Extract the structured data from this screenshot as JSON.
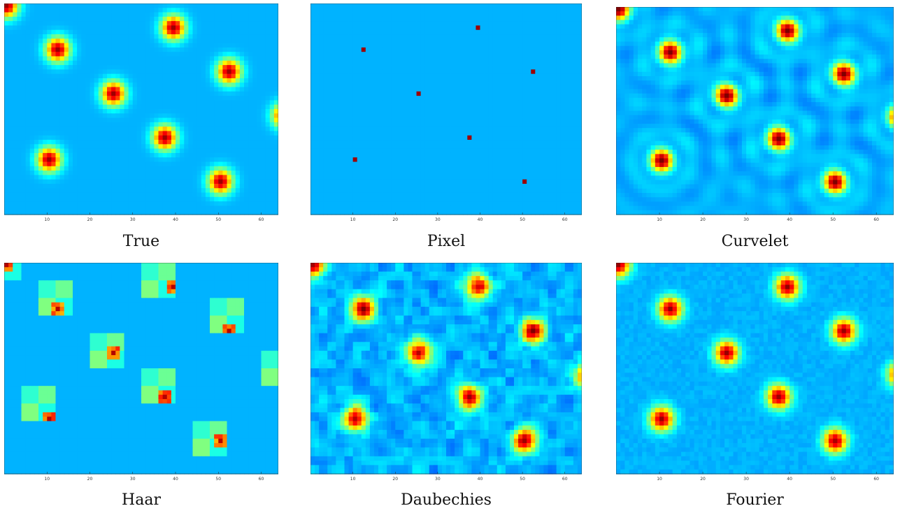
{
  "chart_data": [
    {
      "type": "heatmap",
      "title": "True",
      "style": "gaussian",
      "colormap": "jet",
      "peaks": [
        [
          39,
          5
        ],
        [
          12,
          10
        ],
        [
          52,
          15
        ],
        [
          25,
          20
        ],
        [
          65,
          25
        ],
        [
          37,
          30
        ],
        [
          10,
          35
        ],
        [
          50,
          40
        ],
        [
          0,
          0
        ]
      ],
      "xticks": [
        "10",
        "20",
        "30",
        "40",
        "50",
        "60"
      ]
    },
    {
      "type": "heatmap",
      "title": "Pixel",
      "style": "spike",
      "colormap": "jet",
      "peaks": [
        [
          39,
          5
        ],
        [
          12,
          10
        ],
        [
          52,
          15
        ],
        [
          25,
          20
        ],
        [
          65,
          25
        ],
        [
          37,
          30
        ],
        [
          10,
          35
        ],
        [
          50,
          40
        ]
      ],
      "xticks": [
        "10",
        "20",
        "30",
        "40",
        "50",
        "60"
      ]
    },
    {
      "type": "heatmap",
      "title": "Curvelet",
      "style": "ringing",
      "colormap": "jet",
      "peaks": [
        [
          39,
          5
        ],
        [
          12,
          10
        ],
        [
          52,
          15
        ],
        [
          25,
          20
        ],
        [
          65,
          25
        ],
        [
          37,
          30
        ],
        [
          10,
          35
        ],
        [
          50,
          40
        ],
        [
          0,
          0
        ]
      ],
      "xticks": [
        "10",
        "20",
        "30",
        "40",
        "50",
        "60"
      ]
    },
    {
      "type": "heatmap",
      "title": "Haar",
      "style": "blocks",
      "colormap": "jet",
      "peaks": [
        [
          39,
          5
        ],
        [
          12,
          10
        ],
        [
          52,
          15
        ],
        [
          25,
          20
        ],
        [
          65,
          25
        ],
        [
          37,
          30
        ],
        [
          10,
          35
        ],
        [
          50,
          40
        ],
        [
          0,
          0
        ]
      ],
      "xticks": [
        "10",
        "20",
        "30",
        "40",
        "50",
        "60"
      ]
    },
    {
      "type": "heatmap",
      "title": "Daubechies",
      "style": "noisy",
      "colormap": "jet",
      "peaks": [
        [
          39,
          5
        ],
        [
          12,
          10
        ],
        [
          52,
          15
        ],
        [
          25,
          20
        ],
        [
          65,
          25
        ],
        [
          37,
          30
        ],
        [
          10,
          35
        ],
        [
          50,
          40
        ],
        [
          0,
          0
        ]
      ],
      "xticks": [
        "10",
        "20",
        "30",
        "40",
        "50",
        "60"
      ]
    },
    {
      "type": "heatmap",
      "title": "Fourier",
      "style": "gaussian",
      "colormap": "jet",
      "peaks": [
        [
          39,
          5
        ],
        [
          12,
          10
        ],
        [
          52,
          15
        ],
        [
          25,
          20
        ],
        [
          65,
          25
        ],
        [
          37,
          30
        ],
        [
          10,
          35
        ],
        [
          50,
          40
        ],
        [
          0,
          0
        ]
      ],
      "xticks": [
        "10",
        "20",
        "30",
        "40",
        "50",
        "60"
      ]
    }
  ]
}
